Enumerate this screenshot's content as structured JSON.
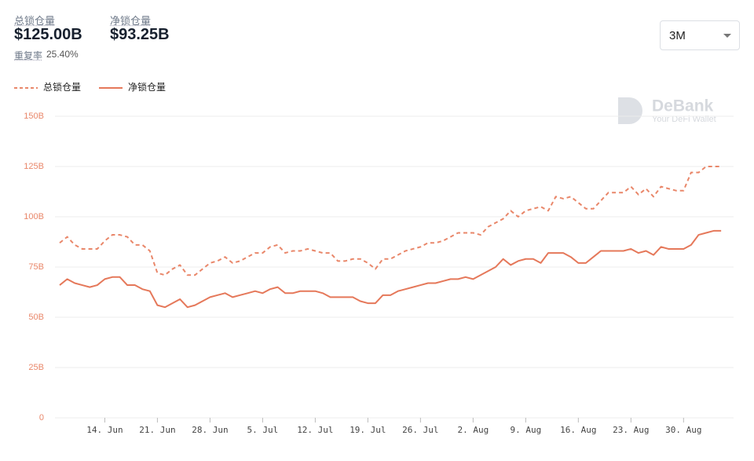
{
  "header": {
    "total_label": "总锁仓量",
    "total_value": "$125.00B",
    "net_label": "净锁仓量",
    "net_value": "$93.25B",
    "ratio_label": "重复率",
    "ratio_value": "25.40%"
  },
  "range_select": "3M",
  "watermark": {
    "brand": "DeBank",
    "tagline": "Your DeFi Wallet"
  },
  "chart_data": {
    "type": "line",
    "categories": [
      null,
      null,
      null,
      null,
      null,
      null,
      "14. Jun",
      null,
      null,
      null,
      null,
      null,
      null,
      "21. Jun",
      null,
      null,
      null,
      null,
      null,
      null,
      "28. Jun",
      null,
      null,
      null,
      null,
      null,
      null,
      "5. Jul",
      null,
      null,
      null,
      null,
      null,
      null,
      "12. Jul",
      null,
      null,
      null,
      null,
      null,
      null,
      "19. Jul",
      null,
      null,
      null,
      null,
      null,
      null,
      "26. Jul",
      null,
      null,
      null,
      null,
      null,
      null,
      "2. Aug",
      null,
      null,
      null,
      null,
      null,
      null,
      "9. Aug",
      null,
      null,
      null,
      null,
      null,
      null,
      "16. Aug",
      null,
      null,
      null,
      null,
      null,
      null,
      "23. Aug",
      null,
      null,
      null,
      null,
      null,
      null,
      "30. Aug",
      null,
      null,
      null,
      null,
      null
    ],
    "series": [
      {
        "name": "总锁仓量",
        "color": "#e9876a",
        "dashed": true,
        "values": [
          87,
          90,
          86,
          84,
          84,
          84,
          88,
          91,
          91,
          90,
          86,
          86,
          83,
          72,
          71,
          74,
          76,
          71,
          71,
          74,
          77,
          78,
          80,
          77,
          78,
          80,
          82,
          82,
          85,
          86,
          82,
          83,
          83,
          84,
          83,
          82,
          82,
          78,
          78,
          79,
          79,
          77,
          74,
          79,
          79,
          81,
          83,
          84,
          85,
          87,
          87,
          88,
          90,
          92,
          92,
          92,
          91,
          95,
          97,
          99,
          103,
          100,
          103,
          104,
          105,
          103,
          110,
          109,
          110,
          107,
          104,
          104,
          108,
          112,
          112,
          112,
          115,
          111,
          114,
          110,
          115,
          114,
          113,
          113,
          122,
          122,
          125,
          125,
          125
        ]
      },
      {
        "name": "净锁仓量",
        "color": "#e5785a",
        "dashed": false,
        "values": [
          66,
          69,
          67,
          66,
          65,
          66,
          69,
          70,
          70,
          66,
          66,
          64,
          63,
          56,
          55,
          57,
          59,
          55,
          56,
          58,
          60,
          61,
          62,
          60,
          61,
          62,
          63,
          62,
          64,
          65,
          62,
          62,
          63,
          63,
          63,
          62,
          60,
          60,
          60,
          60,
          58,
          57,
          57,
          61,
          61,
          63,
          64,
          65,
          66,
          67,
          67,
          68,
          69,
          69,
          70,
          69,
          71,
          73,
          75,
          79,
          76,
          78,
          79,
          79,
          77,
          82,
          82,
          82,
          80,
          77,
          77,
          80,
          83,
          83,
          83,
          83,
          84,
          82,
          83,
          81,
          85,
          84,
          84,
          84,
          86,
          91,
          92,
          93,
          93
        ]
      }
    ],
    "ylim": [
      0,
      150
    ],
    "yticks": [
      0,
      {
        "value": 25,
        "label": "25B"
      },
      {
        "value": 50,
        "label": "50B"
      },
      {
        "value": 75,
        "label": "75B"
      },
      {
        "value": 100,
        "label": "100B"
      },
      {
        "value": 125,
        "label": "125B"
      },
      {
        "value": 150,
        "label": "150B"
      }
    ],
    "grid": true
  }
}
